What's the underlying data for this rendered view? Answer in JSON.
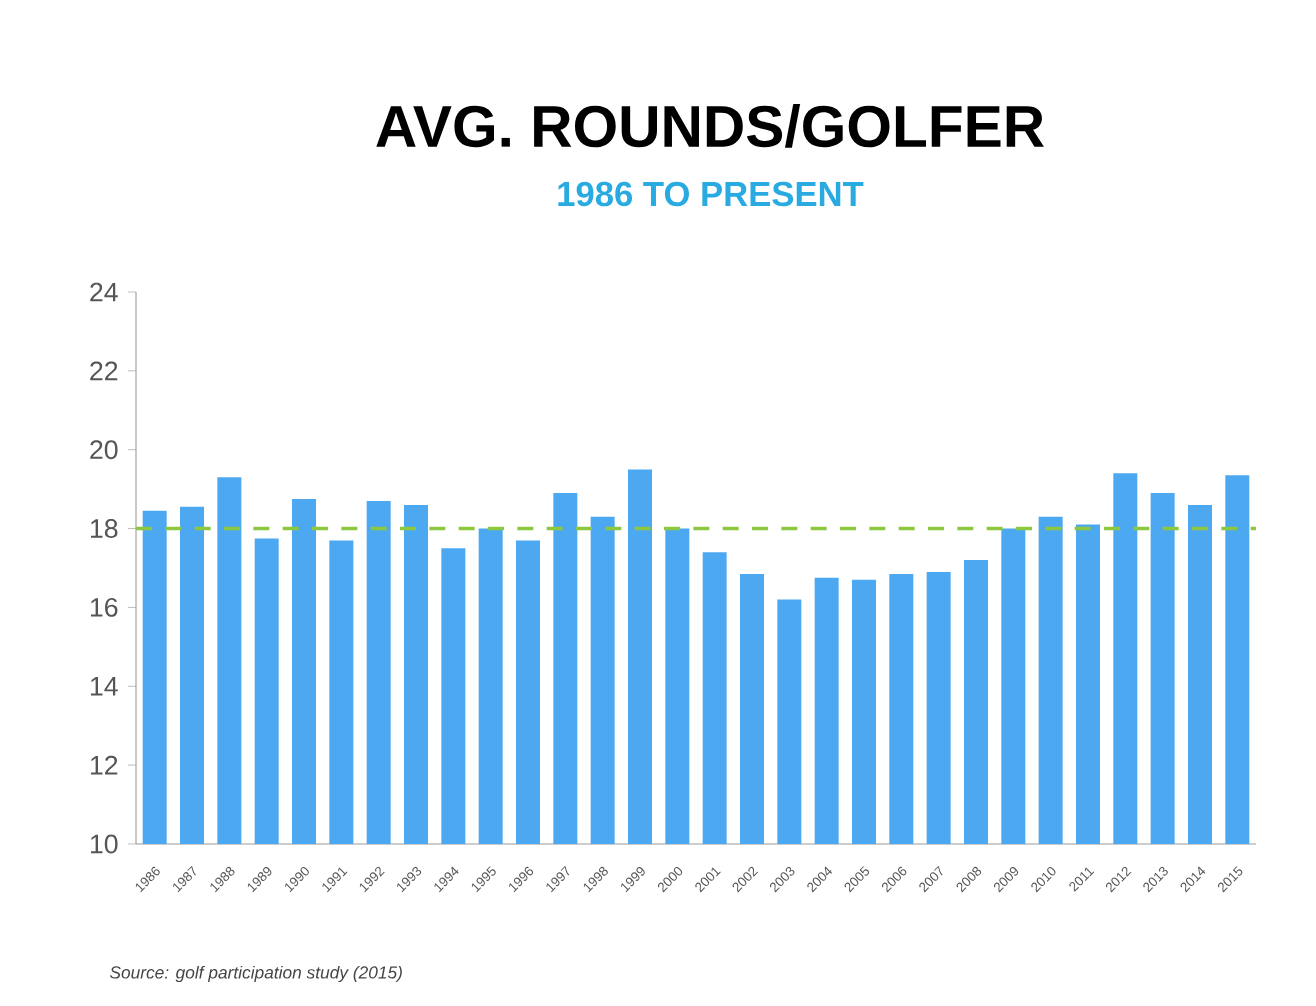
{
  "chart_data": {
    "type": "bar",
    "title": "AVG. ROUNDS/GOLFER",
    "subtitle": "1986 TO PRESENT",
    "categories": [
      "1986",
      "1987",
      "1988",
      "1989",
      "1990",
      "1991",
      "1992",
      "1993",
      "1994",
      "1995",
      "1996",
      "1997",
      "1998",
      "1999",
      "2000",
      "2001",
      "2002",
      "2003",
      "2004",
      "2005",
      "2006",
      "2007",
      "2008",
      "2009",
      "2010",
      "2011",
      "2012",
      "2013",
      "2014",
      "2015"
    ],
    "values": [
      18.45,
      18.55,
      19.3,
      17.75,
      18.75,
      17.7,
      18.7,
      18.6,
      17.5,
      18.0,
      17.7,
      18.9,
      18.3,
      19.5,
      18.0,
      17.4,
      16.85,
      16.2,
      16.75,
      16.7,
      16.85,
      16.9,
      17.2,
      18.0,
      18.3,
      18.1,
      19.4,
      18.9,
      18.6,
      19.35
    ],
    "color": "#4da8f2",
    "ylim": [
      10,
      24
    ],
    "yticks": [
      10,
      12,
      14,
      16,
      18,
      20,
      22,
      24
    ],
    "ref_lines": [
      {
        "axis": "y",
        "value": 18,
        "color": "#8dc63f",
        "line_style": "dashed"
      }
    ],
    "annotations": [
      "Source: golf participation study (2015)"
    ]
  }
}
